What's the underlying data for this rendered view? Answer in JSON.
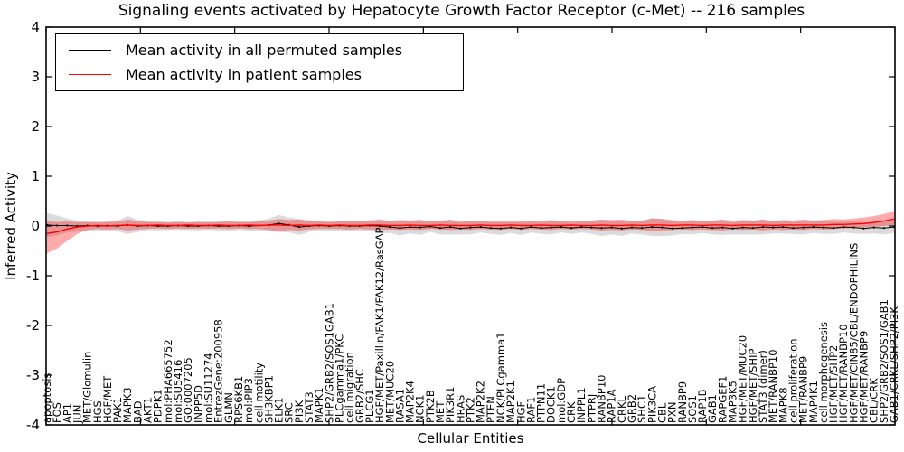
{
  "title": "Signaling events activated by Hepatocyte Growth Factor Receptor (c-Met) -- 216 samples",
  "axes": {
    "xlabel": "Cellular Entities",
    "ylabel": "Inferred Activity",
    "ytick_labels": [
      "4",
      "3",
      "2",
      "1",
      "0",
      "-1",
      "-2",
      "-3",
      "-4"
    ],
    "ytick_values": [
      4,
      3,
      2,
      1,
      0,
      -1,
      -2,
      -3,
      -4
    ]
  },
  "legend": {
    "items": [
      {
        "label": "Mean activity in all permuted samples",
        "color": "#000000"
      },
      {
        "label": "Mean activity in patient samples",
        "color": "#ff0000"
      }
    ]
  },
  "colors": {
    "permuted_line": "#000000",
    "permuted_band": "#999999",
    "patient_line": "#ff0000",
    "patient_band": "#ff0000",
    "frame": "#000000"
  },
  "chart_data": {
    "type": "line",
    "title": "Signaling events activated by Hepatocyte Growth Factor Receptor (c-Met) -- 216 samples",
    "xlabel": "Cellular Entities",
    "ylabel": "Inferred Activity",
    "ylim": [
      -4,
      4
    ],
    "yticks": [
      4,
      3,
      2,
      1,
      0,
      -1,
      -2,
      -3,
      -4
    ],
    "grid": false,
    "legend_position": "upper left",
    "categories": [
      "apoptosis",
      "FOS",
      "AP1",
      "JUN",
      "MET/Glomulin",
      "HGS",
      "HGF/MET",
      "PAK1",
      "MAPK3",
      "BAD",
      "AKT1",
      "PDPK1",
      "mol:PHA665752",
      "mol:SU5416",
      "GO:0007205",
      "INPP5D",
      "mol:SU11274",
      "EntrezGene:200958",
      "GLMN",
      "RPS6KB1",
      "mol:PIP3",
      "cell motility",
      "SH3KBP1",
      "ELK1",
      "SRC",
      "PI3K",
      "STAT3",
      "MAPK1",
      "SHP2/GRB2/SOS1GAB1",
      "PLCgamma1/PKC",
      "cell migration",
      "GRB2/SHC",
      "PLCG1",
      "HGF/MET/Paxillin/FAK1/FAK12/RasGAP",
      "MET/MUC20",
      "RASA1",
      "MAP2K4",
      "NCK1",
      "PTK2B",
      "MET",
      "PIK3R1",
      "HRAS",
      "PTK2",
      "MAP2K2",
      "PTEN",
      "NCK/PLCgamma1",
      "MAP2K1",
      "HGF",
      "RAF1",
      "PTPN11",
      "DOCK1",
      "mol:GDP",
      "CRK",
      "INPPL1",
      "PTPRJ",
      "RANBP10",
      "RAP1A",
      "CRKL",
      "GRB2",
      "SHC1",
      "PIK3CA",
      "CBL",
      "PXN",
      "RANBP9",
      "SOS1",
      "RAP1B",
      "GAB1",
      "RAPGEF1",
      "MAP3K5",
      "HGF/MET/MUC20",
      "HGF/MET/SHIP",
      "STAT3 (dimer)",
      "MET/RANBP10",
      "MAPK8",
      "cell proliferation",
      "MET/RANBP9",
      "MAP4K1",
      "cell morphogenesis",
      "HGF/MET/SHP2",
      "HGF/MET/RANBP10",
      "HGF/MET/CIN85/CBL/ENDOPHILINS",
      "HGF/MET/RANBP9",
      "CBL/CRK",
      "SHP2/GRB2/SOS1/GAB1",
      "GAB1/CRKL/SHP2/PI3K"
    ],
    "series": [
      {
        "name": "Mean activity in all permuted samples",
        "color": "#000000",
        "values": [
          0.02,
          0.01,
          0.01,
          0.0,
          0.01,
          0.0,
          0.01,
          0.0,
          0.02,
          0.0,
          0.01,
          0.0,
          0.0,
          0.01,
          0.0,
          0.0,
          0.01,
          0.0,
          0.0,
          0.01,
          0.0,
          0.01,
          0.02,
          0.05,
          0.02,
          -0.02,
          0.0,
          0.01,
          0.0,
          0.01,
          0.0,
          0.0,
          0.01,
          0.0,
          -0.02,
          -0.04,
          -0.02,
          -0.03,
          -0.01,
          -0.04,
          -0.02,
          -0.05,
          -0.03,
          -0.02,
          -0.04,
          -0.05,
          -0.03,
          -0.05,
          -0.02,
          -0.04,
          -0.03,
          -0.02,
          -0.04,
          -0.02,
          -0.03,
          -0.04,
          -0.03,
          -0.05,
          -0.03,
          -0.04,
          -0.02,
          -0.03,
          -0.05,
          -0.04,
          -0.03,
          -0.02,
          -0.04,
          -0.03,
          -0.05,
          -0.03,
          -0.04,
          -0.02,
          -0.03,
          -0.02,
          -0.04,
          -0.03,
          -0.02,
          -0.03,
          -0.04,
          -0.02,
          -0.03,
          -0.05,
          -0.03,
          -0.04,
          -0.02
        ],
        "band_half_width": [
          0.24,
          0.2,
          0.14,
          0.11,
          0.1,
          0.09,
          0.1,
          0.11,
          0.18,
          0.12,
          0.09,
          0.09,
          0.08,
          0.09,
          0.08,
          0.09,
          0.08,
          0.09,
          0.1,
          0.09,
          0.09,
          0.1,
          0.13,
          0.17,
          0.15,
          0.16,
          0.12,
          0.1,
          0.09,
          0.1,
          0.11,
          0.1,
          0.11,
          0.14,
          0.12,
          0.15,
          0.13,
          0.15,
          0.11,
          0.13,
          0.15,
          0.12,
          0.14,
          0.11,
          0.12,
          0.13,
          0.11,
          0.13,
          0.11,
          0.12,
          0.14,
          0.11,
          0.12,
          0.11,
          0.13,
          0.16,
          0.14,
          0.15,
          0.12,
          0.13,
          0.18,
          0.17,
          0.14,
          0.12,
          0.14,
          0.12,
          0.13,
          0.15,
          0.12,
          0.14,
          0.13,
          0.15,
          0.12,
          0.13,
          0.12,
          0.14,
          0.12,
          0.13,
          0.12,
          0.11,
          0.12,
          0.11,
          0.12,
          0.13,
          0.12
        ]
      },
      {
        "name": "Mean activity in patient samples",
        "color": "#ff0000",
        "values": [
          -0.15,
          -0.12,
          -0.06,
          -0.02,
          0.0,
          0.01,
          0.0,
          0.01,
          0.02,
          0.01,
          0.01,
          0.02,
          0.01,
          0.01,
          0.02,
          0.01,
          0.01,
          0.02,
          0.01,
          0.01,
          0.02,
          0.01,
          0.02,
          0.02,
          0.01,
          0.02,
          0.01,
          0.02,
          0.01,
          0.02,
          0.01,
          0.01,
          0.02,
          0.02,
          0.01,
          0.01,
          0.02,
          0.01,
          0.01,
          0.02,
          0.01,
          0.01,
          0.01,
          0.02,
          0.01,
          0.01,
          0.02,
          0.01,
          0.01,
          0.02,
          0.01,
          0.01,
          0.02,
          0.01,
          0.01,
          0.02,
          0.01,
          0.01,
          0.02,
          0.01,
          0.02,
          0.02,
          0.01,
          0.02,
          0.02,
          0.01,
          0.02,
          0.02,
          0.01,
          0.02,
          0.02,
          0.02,
          0.01,
          0.02,
          0.02,
          0.02,
          0.02,
          0.02,
          0.03,
          0.03,
          0.04,
          0.05,
          0.07,
          0.1,
          0.14
        ],
        "band_upper": [
          0.1,
          0.08,
          0.09,
          0.08,
          0.08,
          0.07,
          0.08,
          0.09,
          0.13,
          0.1,
          0.08,
          0.08,
          0.07,
          0.08,
          0.07,
          0.08,
          0.07,
          0.08,
          0.09,
          0.08,
          0.08,
          0.09,
          0.11,
          0.14,
          0.12,
          0.13,
          0.1,
          0.09,
          0.08,
          0.09,
          0.1,
          0.09,
          0.1,
          0.12,
          0.1,
          0.12,
          0.11,
          0.12,
          0.09,
          0.11,
          0.12,
          0.1,
          0.11,
          0.09,
          0.1,
          0.11,
          0.09,
          0.11,
          0.09,
          0.1,
          0.12,
          0.09,
          0.1,
          0.09,
          0.11,
          0.13,
          0.12,
          0.13,
          0.1,
          0.11,
          0.15,
          0.14,
          0.12,
          0.1,
          0.12,
          0.1,
          0.11,
          0.13,
          0.1,
          0.12,
          0.11,
          0.13,
          0.1,
          0.12,
          0.11,
          0.13,
          0.11,
          0.12,
          0.14,
          0.13,
          0.15,
          0.17,
          0.2,
          0.24,
          0.3
        ],
        "band_lower": [
          -0.55,
          -0.45,
          -0.3,
          -0.16,
          -0.08,
          -0.06,
          -0.07,
          -0.06,
          -0.09,
          -0.07,
          -0.06,
          -0.05,
          -0.06,
          -0.05,
          -0.06,
          -0.05,
          -0.06,
          -0.05,
          -0.06,
          -0.05,
          -0.06,
          -0.06,
          -0.08,
          -0.1,
          -0.08,
          -0.09,
          -0.07,
          -0.06,
          -0.06,
          -0.06,
          -0.07,
          -0.06,
          -0.07,
          -0.08,
          -0.07,
          -0.08,
          -0.07,
          -0.08,
          -0.06,
          -0.07,
          -0.08,
          -0.07,
          -0.08,
          -0.06,
          -0.07,
          -0.08,
          -0.06,
          -0.08,
          -0.06,
          -0.07,
          -0.08,
          -0.06,
          -0.07,
          -0.06,
          -0.07,
          -0.09,
          -0.08,
          -0.09,
          -0.07,
          -0.08,
          -0.1,
          -0.09,
          -0.08,
          -0.07,
          -0.08,
          -0.07,
          -0.08,
          -0.09,
          -0.07,
          -0.08,
          -0.07,
          -0.09,
          -0.07,
          -0.08,
          -0.07,
          -0.08,
          -0.06,
          -0.07,
          -0.06,
          -0.05,
          -0.04,
          -0.03,
          -0.02,
          0.0,
          0.02
        ]
      }
    ]
  }
}
